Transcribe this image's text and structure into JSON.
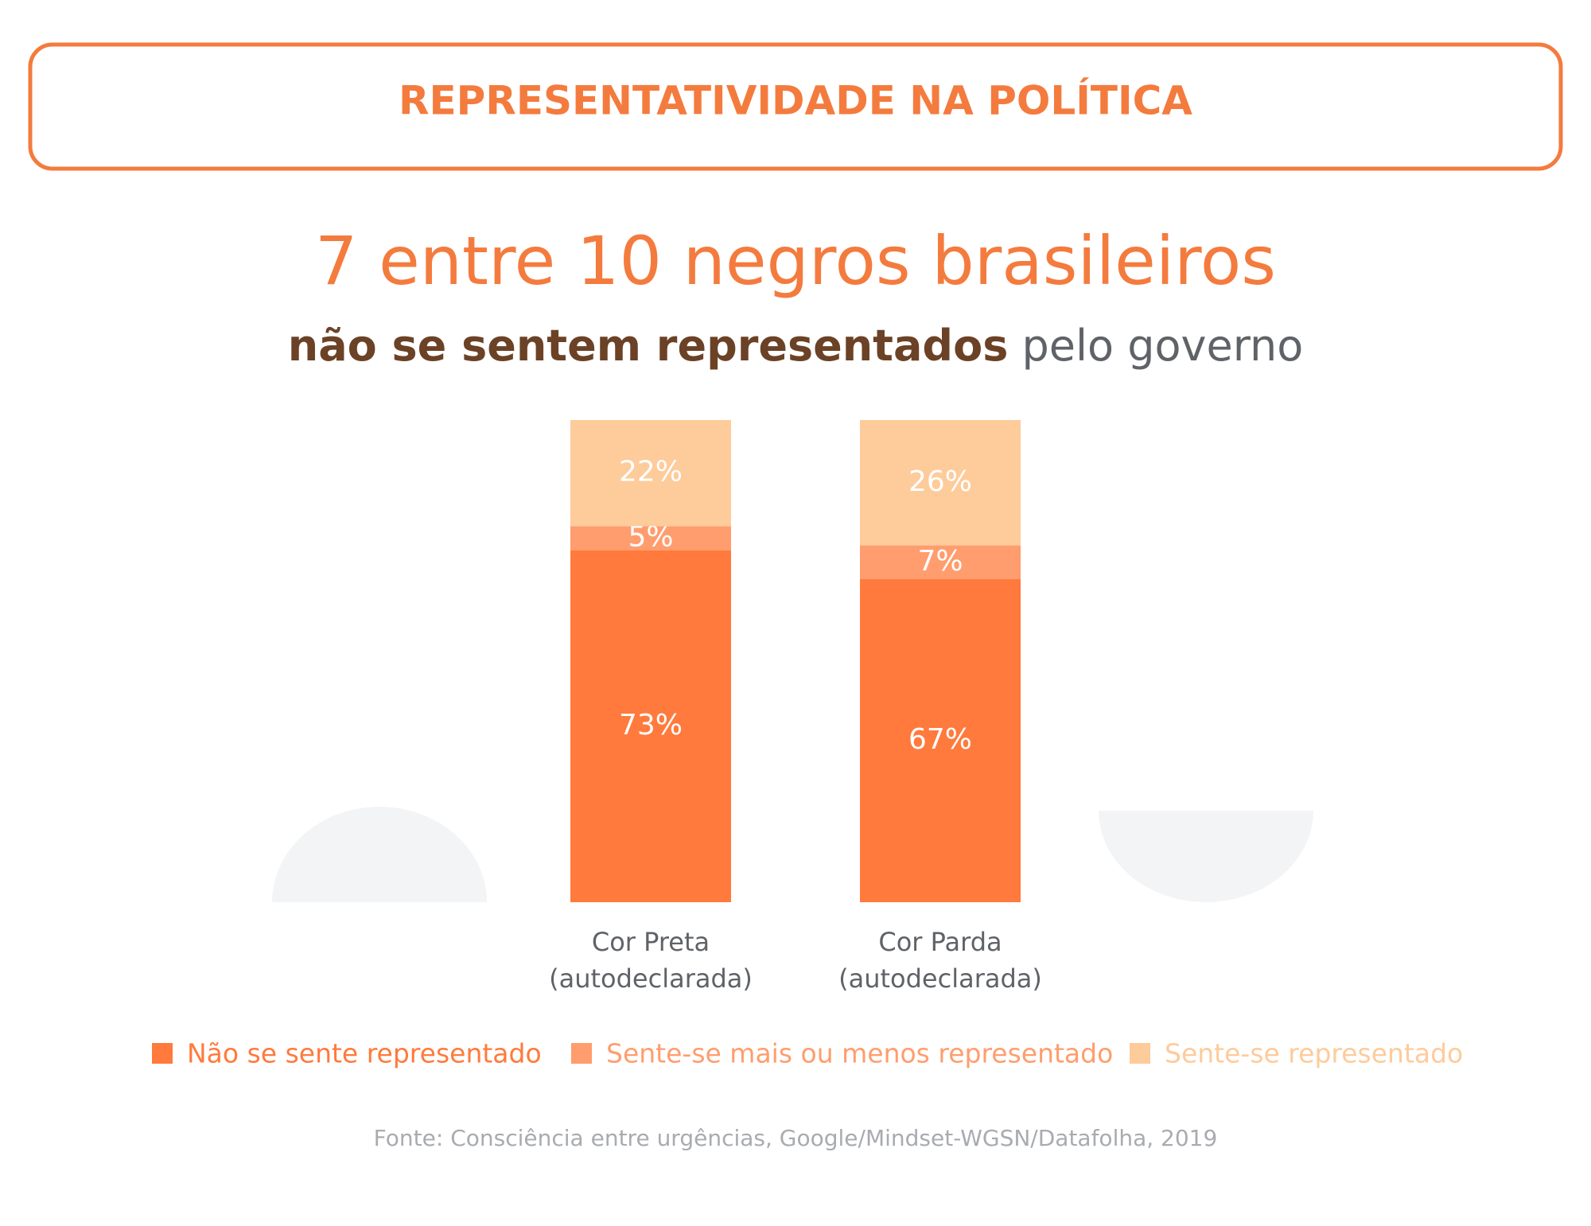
{
  "header": {
    "title": "REPRESENTATIVIDADE NA POLÍTICA"
  },
  "headline": "7 entre 10 negros brasileiros",
  "subtitle": {
    "bold": "não se sentem representados",
    "rest": "pelo governo"
  },
  "chart_data": {
    "type": "stacked-bar",
    "categories": [
      [
        "Cor Preta",
        "(autodeclarada)"
      ],
      [
        "Cor Parda",
        "(autodeclarada)"
      ]
    ],
    "series": [
      {
        "name": "Não se sente representado",
        "color": "#ff7a3c",
        "values": [
          73,
          67
        ],
        "value_labels": [
          "73%",
          "67%"
        ]
      },
      {
        "name": "Sente-se mais ou menos representado",
        "color": "#ff9d6e",
        "values": [
          5,
          7
        ],
        "value_labels": [
          "5%",
          "7%"
        ]
      },
      {
        "name": "Sente-se representado",
        "color": "#fecb9b",
        "values": [
          22,
          26
        ],
        "value_labels": [
          "22%",
          "26%"
        ]
      }
    ]
  },
  "source": "Fonte: Consciência entre urgências, Google/Mindset-WGSN/Datafolha, 2019"
}
